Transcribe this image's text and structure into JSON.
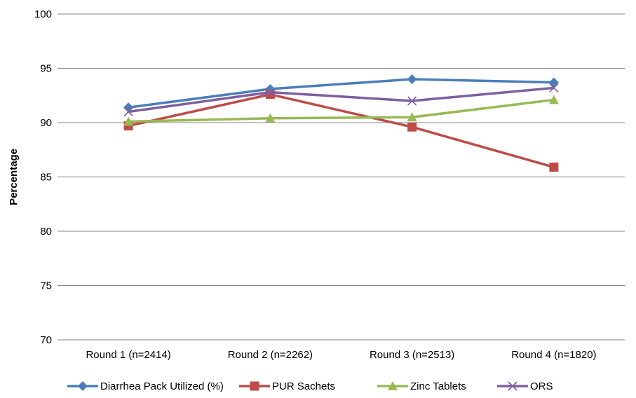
{
  "chart_data": {
    "type": "line",
    "title": "",
    "xlabel": "",
    "ylabel": "Percentage",
    "categories": [
      "Round 1 (n=2414)",
      "Round 2 (n=2262)",
      "Round 3 (n=2513)",
      "Round 4 (n=1820)"
    ],
    "ylim": [
      70,
      100
    ],
    "yticks": [
      70,
      75,
      80,
      85,
      90,
      95,
      100
    ],
    "grid": true,
    "legend_position": "bottom",
    "series": [
      {
        "name": "Diarrhea  Pack Utilized (%)",
        "color": "#4A7EBB",
        "marker": "diamond",
        "values": [
          91.4,
          93.1,
          94.0,
          93.7
        ]
      },
      {
        "name": "PUR Sachets",
        "color": "#BE4B48",
        "marker": "square",
        "values": [
          89.7,
          92.6,
          89.6,
          85.9
        ]
      },
      {
        "name": "Zinc Tablets",
        "color": "#98B954",
        "marker": "triangle",
        "values": [
          90.1,
          90.4,
          90.5,
          92.1
        ]
      },
      {
        "name": "ORS",
        "color": "#7D60A0",
        "marker": "x",
        "values": [
          91.0,
          92.8,
          92.0,
          93.2
        ]
      }
    ]
  }
}
